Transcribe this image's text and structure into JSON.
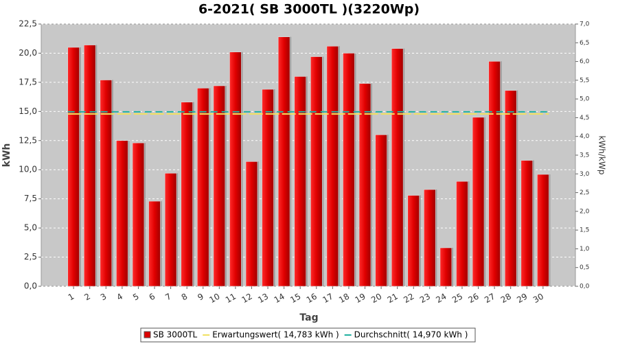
{
  "chart_data": {
    "type": "bar",
    "title": "6-2021( SB 3000TL )(3220Wp)",
    "x_label": "Tag",
    "y_label": "kWh",
    "y2_label": "kWh/kWp",
    "categories": [
      "1",
      "2",
      "3",
      "4",
      "5",
      "6",
      "7",
      "8",
      "9",
      "10",
      "11",
      "12",
      "13",
      "14",
      "15",
      "16",
      "17",
      "18",
      "19",
      "20",
      "21",
      "22",
      "23",
      "24",
      "25",
      "26",
      "27",
      "28",
      "29",
      "30"
    ],
    "series": [
      {
        "name": "SB 3000TL",
        "color": "#dd0000",
        "values": [
          20.5,
          20.7,
          17.7,
          12.5,
          12.3,
          7.3,
          9.7,
          15.8,
          17.0,
          17.2,
          20.1,
          10.7,
          16.9,
          21.4,
          18.0,
          19.7,
          20.6,
          20.0,
          17.4,
          13.0,
          20.4,
          7.8,
          8.3,
          3.3,
          9.0,
          14.5,
          19.3,
          16.8,
          10.8,
          9.6
        ]
      }
    ],
    "reference_lines": [
      {
        "name": "Erwartungswert( 14,783 kWh )",
        "value": 14.783,
        "color": "#f0e060"
      },
      {
        "name": "Durchschnitt( 14,970 kWh )",
        "value": 14.97,
        "color": "#20b0a0"
      }
    ],
    "ylim": [
      0,
      22.5
    ],
    "yticks": [
      {
        "value": 0,
        "label": "0,0"
      },
      {
        "value": 2.5,
        "label": "2,5"
      },
      {
        "value": 5,
        "label": "5,0"
      },
      {
        "value": 7.5,
        "label": "7,5"
      },
      {
        "value": 10,
        "label": "10,0"
      },
      {
        "value": 12.5,
        "label": "12,5"
      },
      {
        "value": 15,
        "label": "15,0"
      },
      {
        "value": 17.5,
        "label": "17,5"
      },
      {
        "value": 20,
        "label": "20,0"
      },
      {
        "value": 22.5,
        "label": "22,5"
      }
    ],
    "y2lim": [
      0,
      7.0
    ],
    "y2ticks": [
      {
        "value": 0,
        "label": "0,0"
      },
      {
        "value": 0.5,
        "label": "0,5"
      },
      {
        "value": 1,
        "label": "1,0"
      },
      {
        "value": 1.5,
        "label": "1,5"
      },
      {
        "value": 2,
        "label": "2,0"
      },
      {
        "value": 2.5,
        "label": "2,5"
      },
      {
        "value": 3,
        "label": "3,0"
      },
      {
        "value": 3.5,
        "label": "3,5"
      },
      {
        "value": 4,
        "label": "4,0"
      },
      {
        "value": 4.5,
        "label": "4,5"
      },
      {
        "value": 5,
        "label": "5,0"
      },
      {
        "value": 5.5,
        "label": "5,5"
      },
      {
        "value": 6,
        "label": "6,0"
      },
      {
        "value": 6.5,
        "label": "6,5"
      },
      {
        "value": 7,
        "label": "7,0"
      }
    ],
    "grid": true
  }
}
